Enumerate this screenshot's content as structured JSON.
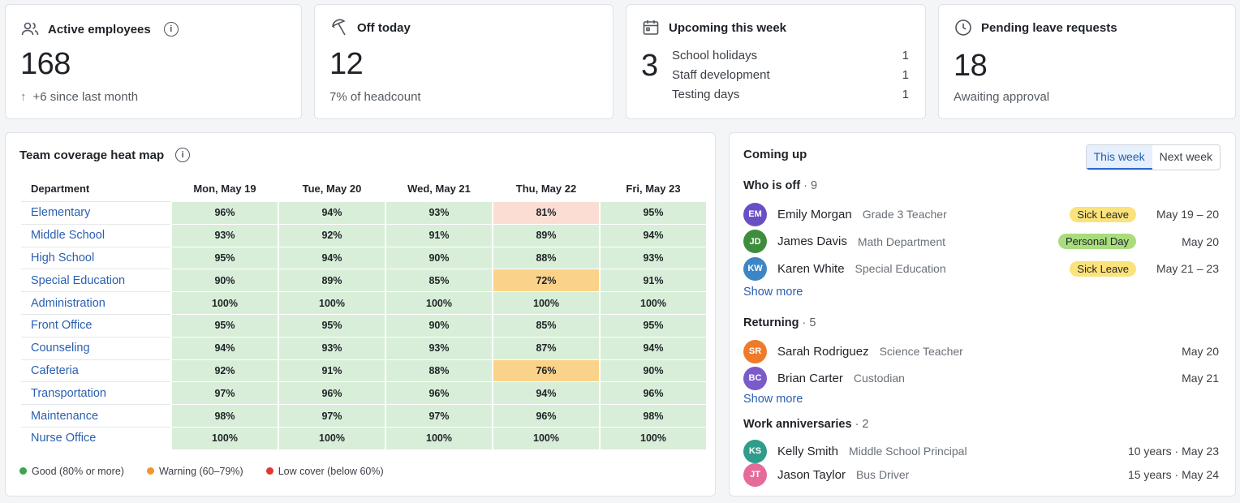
{
  "active": {
    "title": "Active employees",
    "value": "168",
    "delta": "+6 since last month"
  },
  "off": {
    "title": "Off today",
    "value": "12",
    "sub": "7% of headcount"
  },
  "upcoming": {
    "title": "Upcoming this week",
    "value": "3",
    "items": [
      {
        "label": "School holidays",
        "count": "1"
      },
      {
        "label": "Staff development",
        "count": "1"
      },
      {
        "label": "Testing days",
        "count": "1"
      }
    ]
  },
  "pending": {
    "title": "Pending leave requests",
    "value": "18",
    "sub": "Awaiting approval"
  },
  "heatmap": {
    "title": "Team coverage heat map",
    "dept_header": "Department",
    "days": [
      "Mon, May 19",
      "Tue, May 20",
      "Wed, May 21",
      "Thu, May 22",
      "Fri, May 23"
    ],
    "rows": [
      {
        "dept": "Elementary",
        "values": [
          "96%",
          "94%",
          "93%",
          "81%",
          "95%"
        ],
        "status": [
          "good",
          "good",
          "good",
          "mild",
          "good"
        ]
      },
      {
        "dept": "Middle School",
        "values": [
          "93%",
          "92%",
          "91%",
          "89%",
          "94%"
        ],
        "status": [
          "good",
          "good",
          "good",
          "good",
          "good"
        ]
      },
      {
        "dept": "High School",
        "values": [
          "95%",
          "94%",
          "90%",
          "88%",
          "93%"
        ],
        "status": [
          "good",
          "good",
          "good",
          "good",
          "good"
        ]
      },
      {
        "dept": "Special Education",
        "values": [
          "90%",
          "89%",
          "85%",
          "72%",
          "91%"
        ],
        "status": [
          "good",
          "good",
          "good",
          "warn",
          "good"
        ]
      },
      {
        "dept": "Administration",
        "values": [
          "100%",
          "100%",
          "100%",
          "100%",
          "100%"
        ],
        "status": [
          "good",
          "good",
          "good",
          "good",
          "good"
        ]
      },
      {
        "dept": "Front Office",
        "values": [
          "95%",
          "95%",
          "90%",
          "85%",
          "95%"
        ],
        "status": [
          "good",
          "good",
          "good",
          "good",
          "good"
        ]
      },
      {
        "dept": "Counseling",
        "values": [
          "94%",
          "93%",
          "93%",
          "87%",
          "94%"
        ],
        "status": [
          "good",
          "good",
          "good",
          "good",
          "good"
        ]
      },
      {
        "dept": "Cafeteria",
        "values": [
          "92%",
          "91%",
          "88%",
          "76%",
          "90%"
        ],
        "status": [
          "good",
          "good",
          "good",
          "warn",
          "good"
        ]
      },
      {
        "dept": "Transportation",
        "values": [
          "97%",
          "96%",
          "96%",
          "94%",
          "96%"
        ],
        "status": [
          "good",
          "good",
          "good",
          "good",
          "good"
        ]
      },
      {
        "dept": "Maintenance",
        "values": [
          "98%",
          "97%",
          "97%",
          "96%",
          "98%"
        ],
        "status": [
          "good",
          "good",
          "good",
          "good",
          "good"
        ]
      },
      {
        "dept": "Nurse Office",
        "values": [
          "100%",
          "100%",
          "100%",
          "100%",
          "100%"
        ],
        "status": [
          "good",
          "good",
          "good",
          "good",
          "good"
        ]
      }
    ],
    "legend": [
      {
        "label": "Good (80% or more)",
        "color": "#3aa64b"
      },
      {
        "label": "Warning (60–79%)",
        "color": "#f0972b"
      },
      {
        "label": "Low cover (below 60%)",
        "color": "#e0372f"
      }
    ]
  },
  "coming_up": {
    "title": "Coming up",
    "tabs": [
      "This week",
      "Next week"
    ],
    "who_off": {
      "title": "Who is off",
      "count": "· 9",
      "show_more": "Show more",
      "people": [
        {
          "initials": "EM",
          "name": "Emily Morgan",
          "role": "Grade 3 Teacher",
          "badge": "Sick Leave",
          "date": "May 19 – 20",
          "color": "#6a4fc4",
          "badge_color": "#fbe27a"
        },
        {
          "initials": "JD",
          "name": "James Davis",
          "role": "Math Department",
          "badge": "Personal Day",
          "date": "May 20",
          "color": "#3e8d3c",
          "badge_color": "#a9dc7c"
        },
        {
          "initials": "KW",
          "name": "Karen White",
          "role": "Special Education",
          "badge": "Sick Leave",
          "date": "May 21 – 23",
          "color": "#3d86c6",
          "badge_color": "#fbe27a"
        }
      ]
    },
    "returning": {
      "title": "Returning",
      "count": "· 5",
      "show_more": "Show more",
      "people": [
        {
          "initials": "SR",
          "name": "Sarah Rodriguez",
          "role": "Science Teacher",
          "date": "May 20",
          "color": "#ee7b2b"
        },
        {
          "initials": "BC",
          "name": "Brian Carter",
          "role": "Custodian",
          "date": "May 21",
          "color": "#7a5bc8"
        }
      ]
    },
    "anniversaries": {
      "title": "Work anniversaries",
      "count": "· 2",
      "people": [
        {
          "initials": "KS",
          "name": "Kelly Smith",
          "role": "Middle School Principal",
          "date": "10 years  ·  May 23",
          "color": "#2f9c8c"
        },
        {
          "initials": "JT",
          "name": "Jason Taylor",
          "role": "Bus Driver",
          "date": "15 years  ·  May 24",
          "color": "#e56b9a"
        }
      ]
    }
  }
}
